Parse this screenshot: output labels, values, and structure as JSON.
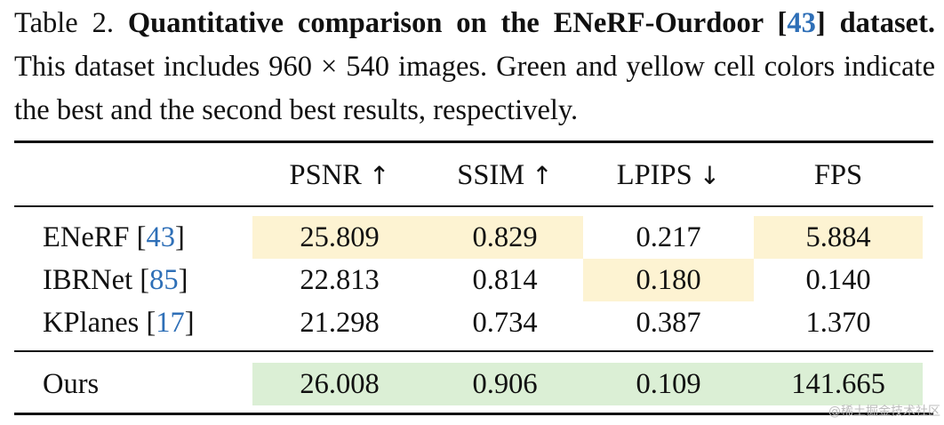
{
  "caption": {
    "label": "Table 2. ",
    "bold_title": "Quantitative comparison on the ENeRF-Ourdoor [",
    "bold_cite": "43",
    "bold_close": "]",
    "bold_dataset": "dataset.",
    "body": " This dataset includes 960 × 540 images. Green and yellow cell colors indicate the best and the second best results, respectively."
  },
  "table": {
    "headers": [
      {
        "label": "PSNR",
        "arrow": "↑"
      },
      {
        "label": "SSIM",
        "arrow": "↑"
      },
      {
        "label": "LPIPS",
        "arrow": "↓"
      },
      {
        "label": "FPS",
        "arrow": ""
      }
    ],
    "rows": [
      {
        "method": "ENeRF [",
        "cite": "43",
        "close": "]",
        "values": [
          "25.809",
          "0.829",
          "0.217",
          "5.884"
        ],
        "highlight": [
          "yellow",
          "yellow",
          "",
          "yellow"
        ]
      },
      {
        "method": "IBRNet [",
        "cite": "85",
        "close": "]",
        "values": [
          "22.813",
          "0.814",
          "0.180",
          "0.140"
        ],
        "highlight": [
          "",
          "",
          "yellow",
          ""
        ]
      },
      {
        "method": "KPlanes [",
        "cite": "17",
        "close": "]",
        "values": [
          "21.298",
          "0.734",
          "0.387",
          "1.370"
        ],
        "highlight": [
          "",
          "",
          "",
          ""
        ]
      },
      {
        "method": "Ours",
        "cite": "",
        "close": "",
        "values": [
          "26.008",
          "0.906",
          "0.109",
          "141.665"
        ],
        "highlight": [
          "green",
          "green",
          "green",
          "green"
        ]
      }
    ]
  },
  "colors": {
    "best": "#dbefd5",
    "second": "#fdf3d2",
    "cite": "#2e6fb7"
  },
  "watermark": "@稀土掘金技术社区"
}
